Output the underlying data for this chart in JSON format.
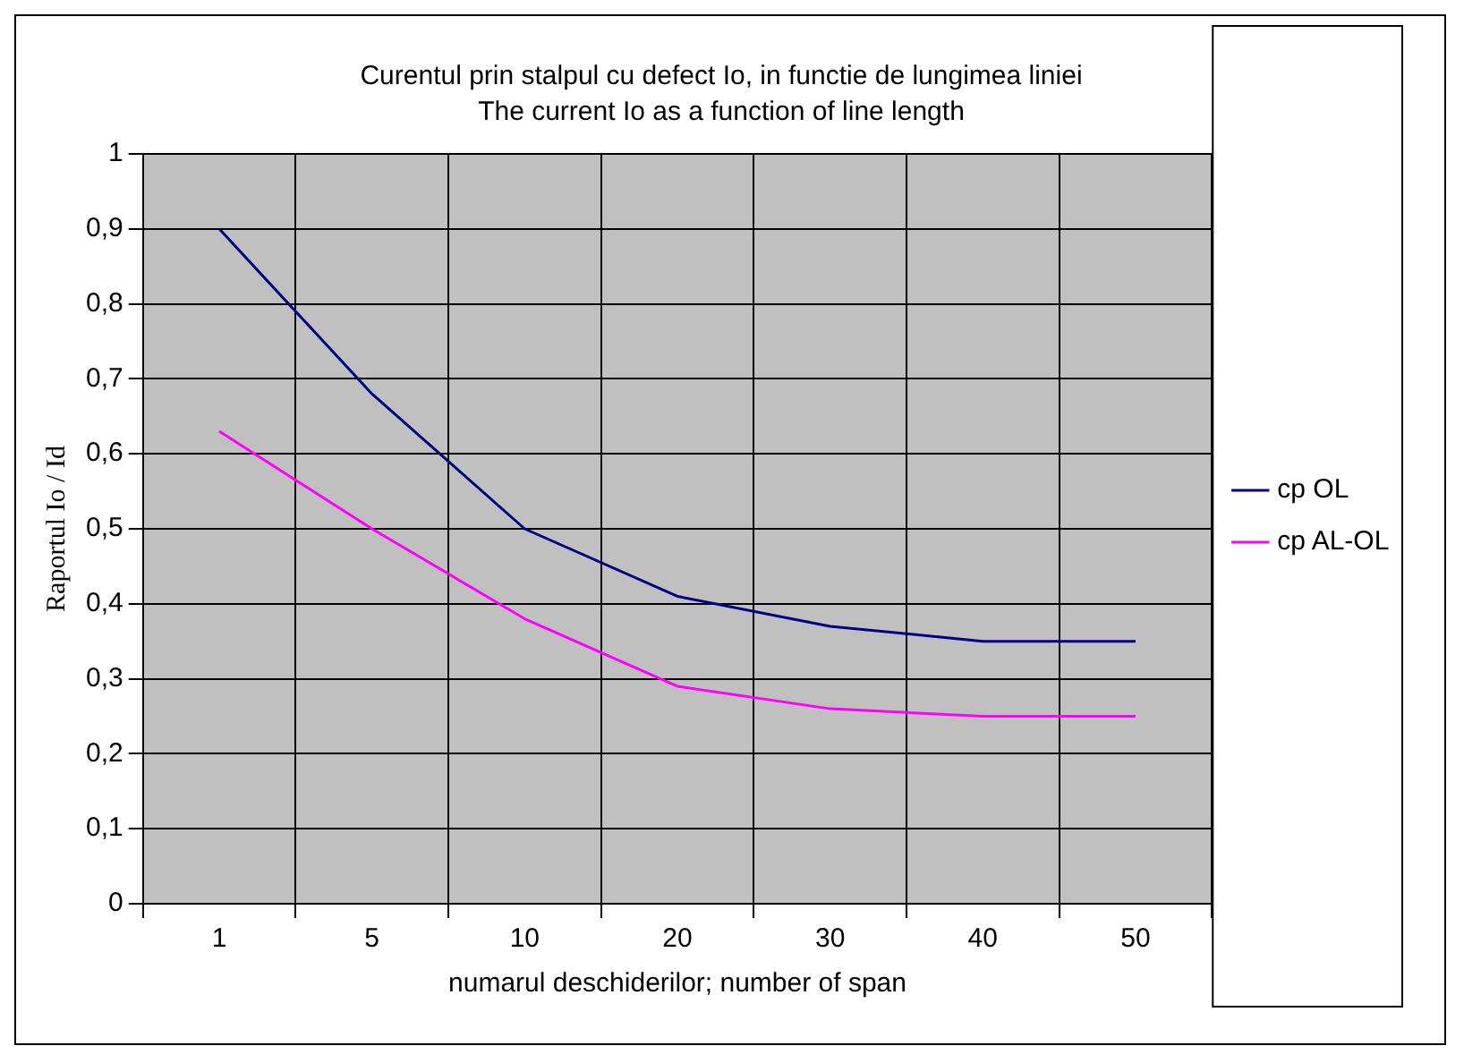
{
  "chart_data": {
    "type": "line",
    "title": "Curentul prin stalpul cu defect Io, in functie de lungimea liniei",
    "subtitle": "The current Io as a function of line length",
    "xlabel": "numarul deschiderilor; number of span",
    "ylabel": "Raportul Io / Id",
    "categories": [
      "1",
      "5",
      "10",
      "20",
      "30",
      "40",
      "50"
    ],
    "series": [
      {
        "name": "cp OL",
        "color": "#000080",
        "values": [
          0.9,
          0.68,
          0.5,
          0.41,
          0.37,
          0.35,
          0.35
        ]
      },
      {
        "name": "cp AL-OL",
        "color": "#ff00ff",
        "values": [
          0.63,
          0.5,
          0.38,
          0.29,
          0.26,
          0.25,
          0.25
        ]
      }
    ],
    "ylim": [
      0,
      1
    ],
    "yticks": [
      0,
      {
        "value": 0.1,
        "label": "0,1"
      },
      {
        "value": 0.2,
        "label": "0,2"
      },
      {
        "value": 0.3,
        "label": "0,3"
      },
      {
        "value": 0.4,
        "label": "0,4"
      },
      {
        "value": 0.5,
        "label": "0,5"
      },
      {
        "value": 0.6,
        "label": "0,6"
      },
      {
        "value": 0.7,
        "label": "0,7"
      },
      {
        "value": 0.8,
        "label": "0,8"
      },
      {
        "value": 0.9,
        "label": "0,9"
      },
      1
    ],
    "grid": true,
    "legend": "right",
    "marker": "none",
    "line_style": "solid"
  }
}
